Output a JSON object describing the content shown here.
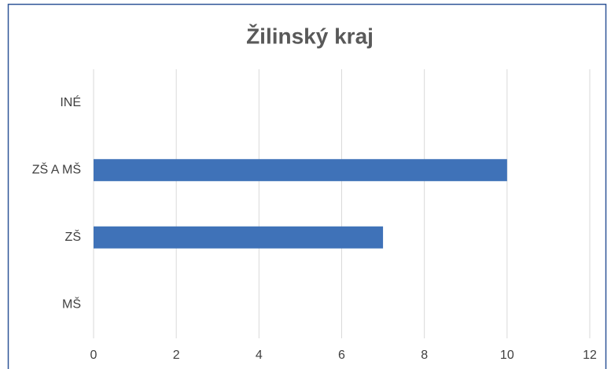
{
  "chart_data": {
    "type": "hbar",
    "title": "Žilinský kraj",
    "categories": [
      "INÉ",
      "ZŠ A MŠ",
      "ZŠ",
      "MŠ"
    ],
    "values": [
      0,
      10,
      7,
      0
    ],
    "color": "#3f72b8",
    "xlim": [
      0,
      12
    ],
    "xticks": [
      0,
      2,
      4,
      6,
      8,
      10,
      12
    ],
    "grid": true
  }
}
